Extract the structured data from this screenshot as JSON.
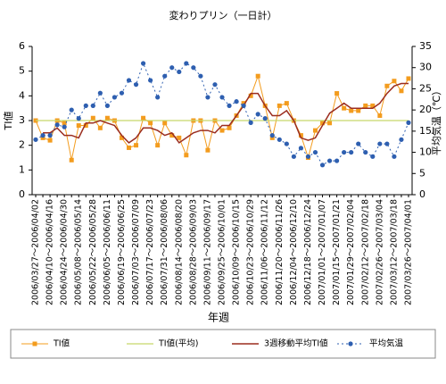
{
  "chart_data": {
    "type": "line",
    "title": "変わりプリン（一日計）",
    "x_label": "年週",
    "y_label": "TI値",
    "y2_label": "平均気温（℃）",
    "categories": [
      "2006/03/27～2006/04/02",
      null,
      "2006/04/10～2006/04/16",
      null,
      "2006/04/24～2006/04/30",
      null,
      "2006/05/08～2006/05/14",
      null,
      "2006/05/22～2006/05/28",
      null,
      "2006/06/05～2006/06/11",
      null,
      "2006/06/19～2006/06/25",
      null,
      "2006/07/03～2006/07/09",
      null,
      "2006/07/17～2006/07/23",
      null,
      "2006/07/31～2006/08/06",
      null,
      "2006/08/14～2006/08/20",
      null,
      "2006/08/28～2006/09/03",
      null,
      "2006/09/11～2006/09/17",
      null,
      "2006/09/25～2006/10/01",
      null,
      "2006/10/09～2006/10/15",
      null,
      "2006/10/23～2006/10/29",
      null,
      "2006/11/06～2006/11/12",
      null,
      "2006/11/20～2006/11/26",
      null,
      "2006/12/04～2006/12/10",
      null,
      "2006/12/18～2006/12/24",
      null,
      "2007/01/01～2007/01/07",
      null,
      "2007/01/15～2007/01/21",
      null,
      "2007/01/29～2007/02/04",
      null,
      "2007/02/12～2007/02/18",
      null,
      "2007/02/26～2007/03/04",
      null,
      "2007/03/12～2007/03/18",
      null,
      "2007/03/26～2007/04/01"
    ],
    "ylim": [
      0,
      6
    ],
    "yticks": [
      0,
      1,
      2,
      3,
      4,
      5,
      6
    ],
    "y2lim": [
      0,
      35
    ],
    "y2ticks": [
      0,
      5,
      10,
      15,
      20,
      25,
      30,
      35
    ],
    "legend": "bottom",
    "series": [
      {
        "name": "TI値",
        "color": "#f39c1e",
        "marker": "square",
        "dash": "none",
        "width": 1,
        "values": [
          3.0,
          2.3,
          2.2,
          3.0,
          2.9,
          1.4,
          2.8,
          2.8,
          3.1,
          2.7,
          3.1,
          3.0,
          2.3,
          1.9,
          2.0,
          3.1,
          2.9,
          2.0,
          2.9,
          2.4,
          2.3,
          1.6,
          3.0,
          3.0,
          1.8,
          3.0,
          2.6,
          2.7,
          3.2,
          3.7,
          4.0,
          4.8,
          3.6,
          2.3,
          3.6,
          3.7,
          3.0,
          2.4,
          1.5,
          2.6,
          2.9,
          2.9,
          4.1,
          3.5,
          3.4,
          3.4,
          3.6,
          3.6,
          3.2,
          4.4,
          4.6,
          4.2,
          4.7
        ]
      },
      {
        "name": "TI値(平均)",
        "color": "#c6d66a",
        "marker": "none",
        "dash": "none",
        "width": 1.2,
        "values": [
          3.0,
          3.0,
          3.0,
          3.0,
          3.0,
          3.0,
          3.0,
          3.0,
          3.0,
          3.0,
          3.0,
          3.0,
          3.0,
          3.0,
          3.0,
          3.0,
          3.0,
          3.0,
          3.0,
          3.0,
          3.0,
          3.0,
          3.0,
          3.0,
          3.0,
          3.0,
          3.0,
          3.0,
          3.0,
          3.0,
          3.0,
          3.0,
          3.0,
          3.0,
          3.0,
          3.0,
          3.0,
          3.0,
          3.0,
          3.0,
          3.0,
          3.0,
          3.0,
          3.0,
          3.0,
          3.0,
          3.0,
          3.0,
          3.0,
          3.0,
          3.0,
          3.0,
          3.0
        ]
      },
      {
        "name": "3週移動平均TI値",
        "color": "#9b2d1f",
        "marker": "none",
        "dash": "none",
        "width": 1.5,
        "values": [
          null,
          2.5,
          2.5,
          2.7,
          2.4,
          2.4,
          2.3,
          2.9,
          2.9,
          3.0,
          2.9,
          2.8,
          2.4,
          2.1,
          2.3,
          2.7,
          2.7,
          2.6,
          2.4,
          2.5,
          2.1,
          2.3,
          2.5,
          2.6,
          2.6,
          2.5,
          2.8,
          2.8,
          3.2,
          3.6,
          4.1,
          4.1,
          3.6,
          3.2,
          3.2,
          3.4,
          3.0,
          2.3,
          2.2,
          2.3,
          2.8,
          3.3,
          3.5,
          3.7,
          3.5,
          3.5,
          3.5,
          3.5,
          3.7,
          4.1,
          4.4,
          4.5,
          4.5
        ]
      },
      {
        "name": "平均気温",
        "color": "#2e5fb0",
        "marker": "circle",
        "dash": "2 3",
        "width": 1,
        "axis": "y2",
        "values": [
          13,
          14,
          14,
          16.5,
          16,
          20,
          18,
          21,
          21,
          24,
          21,
          23,
          24,
          27,
          26,
          31,
          27,
          23,
          28,
          30,
          29,
          31,
          30,
          28,
          23,
          26,
          23,
          21,
          22,
          21,
          17,
          19,
          18,
          14,
          13,
          12,
          9,
          11,
          9,
          10,
          7,
          8,
          8,
          10,
          10,
          12,
          10,
          9,
          12,
          12,
          9,
          13,
          17
        ]
      }
    ]
  }
}
